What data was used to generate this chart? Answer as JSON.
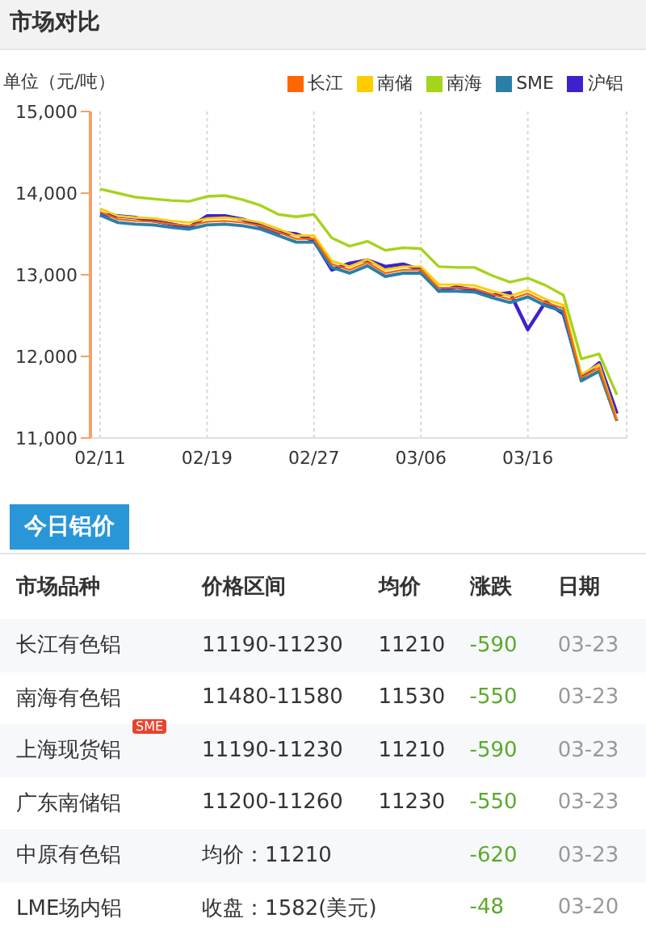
{
  "chart_data": [
    {
      "type": "line",
      "title": "市场对比",
      "ylabel": "单位（元/吨）",
      "categories": [
        "02/11",
        null,
        null,
        null,
        null,
        null,
        "02/19",
        null,
        null,
        null,
        null,
        null,
        "02/27",
        null,
        null,
        null,
        null,
        null,
        "03/06",
        null,
        null,
        null,
        null,
        null,
        "03/16",
        null,
        null,
        null,
        null,
        null
      ],
      "series": [
        {
          "name": "长江",
          "color": "#ff6600",
          "values": [
            13770,
            13680,
            13660,
            13650,
            13620,
            13600,
            13650,
            13660,
            13640,
            13600,
            13520,
            13440,
            13440,
            13130,
            13060,
            13150,
            13020,
            13060,
            13060,
            12840,
            12840,
            12830,
            12760,
            12700,
            12770,
            12660,
            12590,
            11740,
            11860,
            11210
          ]
        },
        {
          "name": "南储",
          "color": "#ffcc00",
          "values": [
            13810,
            13720,
            13700,
            13690,
            13660,
            13640,
            13690,
            13700,
            13680,
            13640,
            13560,
            13480,
            13480,
            13170,
            13100,
            13190,
            13060,
            13100,
            13100,
            12880,
            12880,
            12870,
            12800,
            12740,
            12810,
            12700,
            12630,
            11780,
            11900,
            11230
          ]
        },
        {
          "name": "南海",
          "color": "#a6d31c",
          "values": [
            14050,
            14000,
            13950,
            13930,
            13910,
            13900,
            13960,
            13970,
            13920,
            13850,
            13740,
            13710,
            13740,
            13450,
            13350,
            13410,
            13300,
            13330,
            13320,
            13100,
            13090,
            13090,
            12990,
            12910,
            12960,
            12870,
            12750,
            11970,
            12030,
            11530
          ]
        },
        {
          "name": "SME",
          "color": "#2a7fa8",
          "values": [
            13730,
            13640,
            13620,
            13610,
            13580,
            13560,
            13610,
            13620,
            13600,
            13560,
            13480,
            13400,
            13400,
            13090,
            13020,
            13110,
            12980,
            13020,
            13020,
            12800,
            12800,
            12790,
            12720,
            12660,
            12730,
            12620,
            12550,
            11700,
            11820,
            11210
          ]
        },
        {
          "name": "沪铝",
          "color": "#3d22cc",
          "values": [
            13740,
            13720,
            13700,
            13660,
            13620,
            13580,
            13720,
            13720,
            13680,
            13600,
            13520,
            13500,
            13420,
            13060,
            13140,
            13180,
            13100,
            13130,
            13060,
            12800,
            12850,
            12810,
            12750,
            12780,
            12330,
            12670,
            12520,
            11740,
            11920,
            11300
          ]
        }
      ],
      "ylim": [
        11000,
        15000
      ],
      "yticks": [
        {
          "value": 11000,
          "label": "11,000"
        },
        {
          "value": 12000,
          "label": "12,000"
        },
        {
          "value": 13000,
          "label": "13,000"
        },
        {
          "value": 14000,
          "label": "14,000"
        },
        {
          "value": 15000,
          "label": "15,000"
        }
      ],
      "grid": "x",
      "legend": "top right",
      "marker": "none",
      "line_style": "solid"
    },
    {
      "type": "other",
      "title": "今日铝价",
      "categories": [
        "市场品种",
        "价格区间",
        "均价",
        "涨跌",
        "日期"
      ],
      "y_categories": [
        "长江有色铝",
        "南海有色铝",
        "上海现货铝",
        "广东南储铝",
        "中原有色铝",
        "LME场内铝"
      ],
      "cell_labels": [
        [
          "11190-11230",
          "11210",
          "-590",
          "03-23"
        ],
        [
          "11480-11580",
          "11530",
          "-550",
          "03-23"
        ],
        [
          "11190-11230",
          "11210",
          "-590",
          "03-23"
        ],
        [
          "11200-11260",
          "11230",
          "-550",
          "03-23"
        ],
        [
          "均价：11210",
          null,
          "-620",
          "03-23"
        ],
        [
          "收盘：1582(美元)",
          null,
          "-48",
          "03-20"
        ]
      ],
      "annotations": [
        {
          "text": "SME",
          "y": "上海现货铝"
        }
      ]
    }
  ]
}
